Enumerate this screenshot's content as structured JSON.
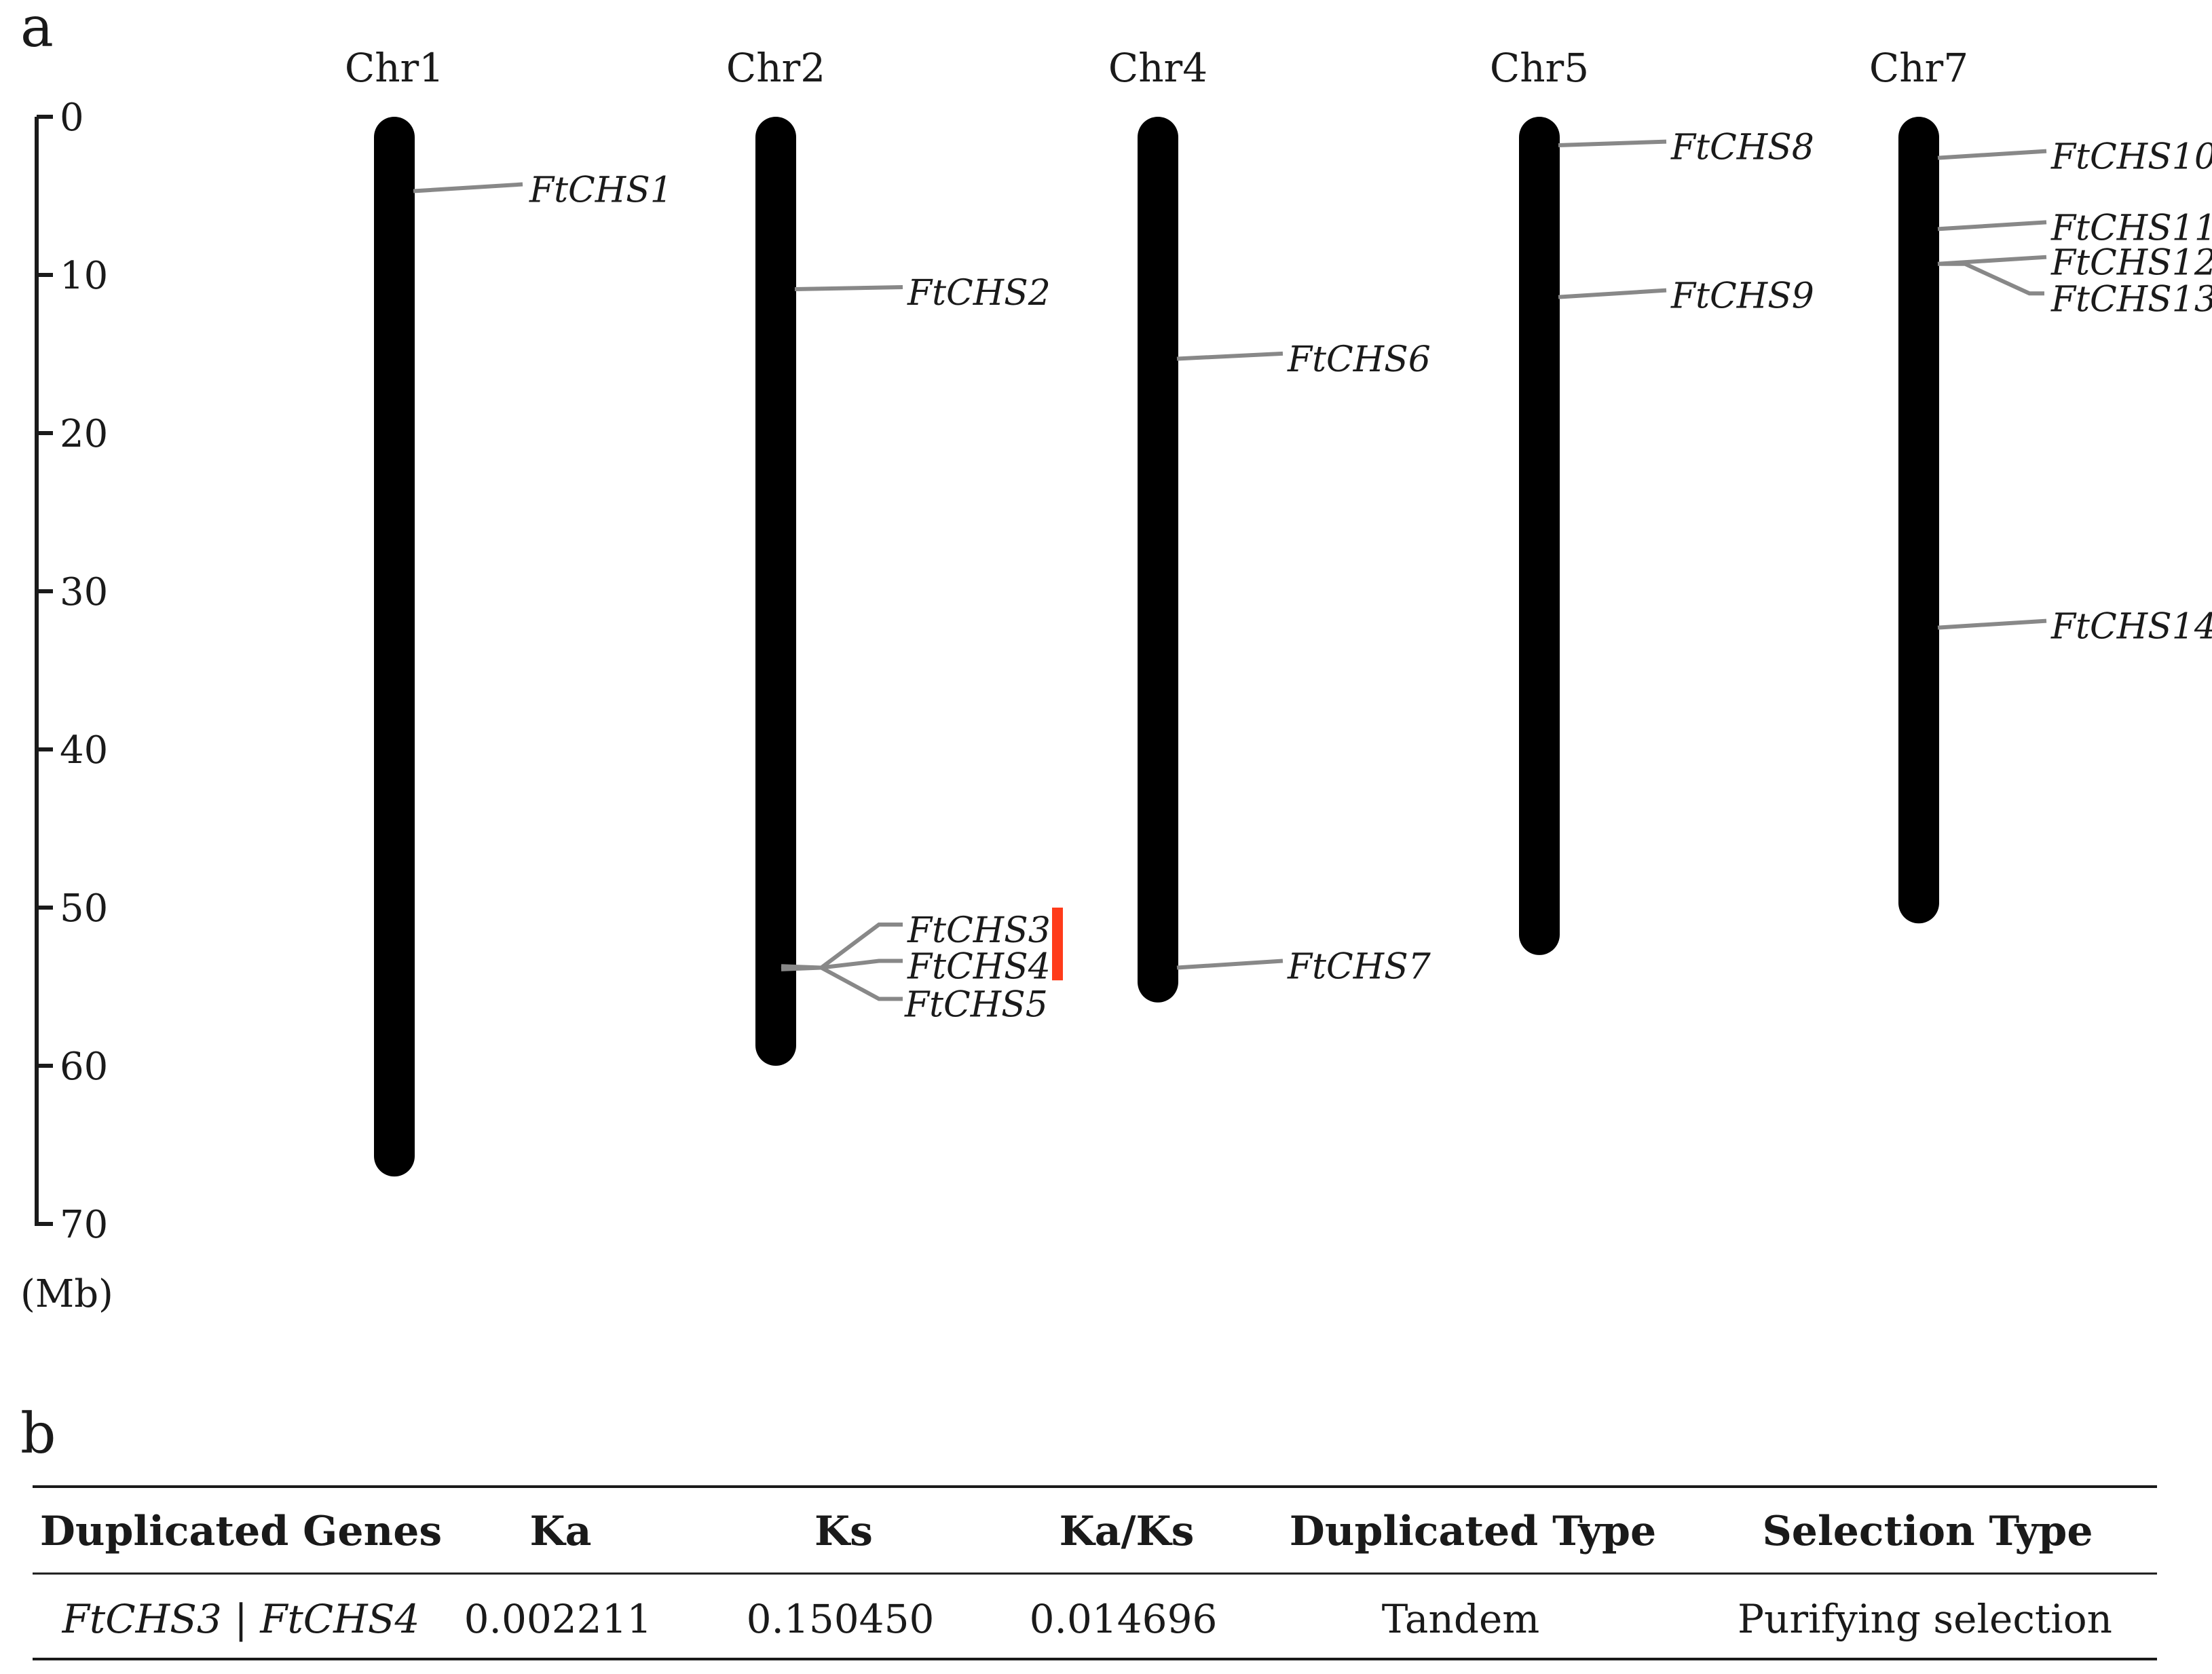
{
  "panel_a_label": "a",
  "panel_b_label": "b",
  "scale": {
    "ticks": [
      0,
      10,
      20,
      30,
      40,
      50,
      60,
      70
    ],
    "unit": "(Mb)"
  },
  "chromosomes": [
    {
      "name": "Chr1",
      "length_mb": 67,
      "genes": [
        {
          "name": "FtCHS1",
          "pos_mb": 4.7
        }
      ]
    },
    {
      "name": "Chr2",
      "length_mb": 60,
      "genes": [
        {
          "name": "FtCHS2",
          "pos_mb": 10.9
        },
        {
          "name": "FtCHS3",
          "pos_mb": 53.7
        },
        {
          "name": "FtCHS4",
          "pos_mb": 53.8
        },
        {
          "name": "FtCHS5",
          "pos_mb": 53.9
        }
      ],
      "tandem_group": [
        "FtCHS3",
        "FtCHS4"
      ]
    },
    {
      "name": "Chr4",
      "length_mb": 56,
      "genes": [
        {
          "name": "FtCHS6",
          "pos_mb": 15.3
        },
        {
          "name": "FtCHS7",
          "pos_mb": 53.8
        }
      ]
    },
    {
      "name": "Chr5",
      "length_mb": 53,
      "genes": [
        {
          "name": "FtCHS8",
          "pos_mb": 1.8
        },
        {
          "name": "FtCHS9",
          "pos_mb": 11.4
        }
      ]
    },
    {
      "name": "Chr7",
      "length_mb": 51,
      "genes": [
        {
          "name": "FtCHS10",
          "pos_mb": 2.6
        },
        {
          "name": "FtCHS11",
          "pos_mb": 7.1
        },
        {
          "name": "FtCHS12",
          "pos_mb": 9.3
        },
        {
          "name": "FtCHS13",
          "pos_mb": 9.4
        },
        {
          "name": "FtCHS14",
          "pos_mb": 32.3
        }
      ]
    }
  ],
  "colors": {
    "chromosome": "#000000",
    "connector": "#888888",
    "tandem_bar": "#ff3b1a",
    "text": "#1a1a1a"
  },
  "table": {
    "headers": [
      "Duplicated Genes",
      "Ka",
      "Ks",
      "Ka/Ks",
      "Duplicated Type",
      "Selection Type"
    ],
    "rows": [
      {
        "genes": "FtCHS3 | FtCHS4",
        "ka": "0.002211",
        "ks": "0.150450",
        "ka_ks": "0.014696",
        "dup_type": "Tandem",
        "selection": "Purifying selection"
      }
    ]
  }
}
